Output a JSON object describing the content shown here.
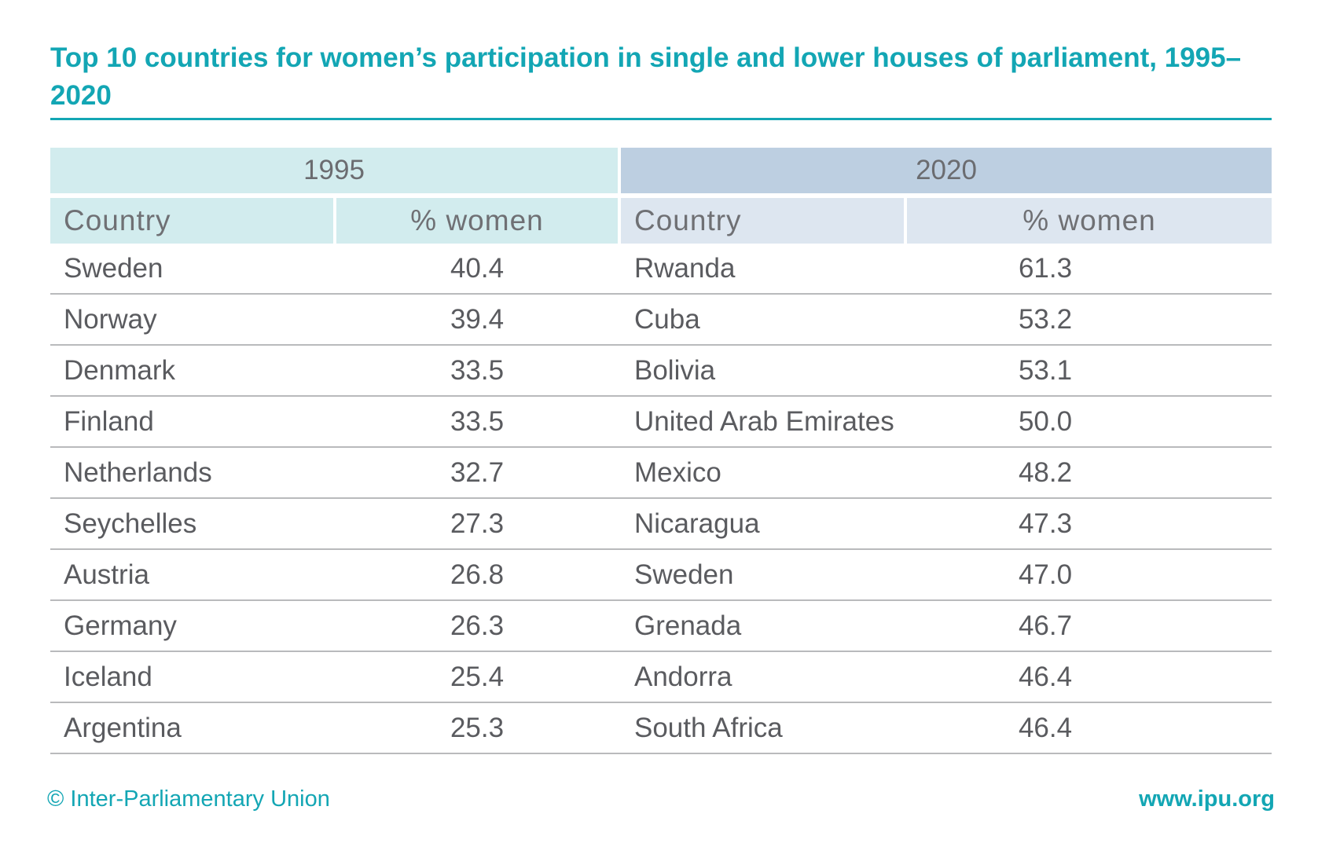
{
  "title": "Top 10 countries for women’s participation in single and lower houses of parliament, 1995–2020",
  "footer": {
    "copyright": "© Inter-Parliamentary Union",
    "website": "www.ipu.org"
  },
  "colors": {
    "accent": "#13a6b4",
    "header_1995": "#d2ecee",
    "header_2020": "#bdcfe1",
    "subheader_2020": "#dde6f0",
    "row_rule": "#b9babc"
  },
  "chart_data": {
    "type": "table",
    "title": "Top 10 countries for women’s participation in single and lower houses of parliament, 1995–2020",
    "groups": [
      {
        "year": "1995",
        "columns": [
          "Country",
          "% women"
        ],
        "rows": [
          [
            "Sweden",
            "40.4"
          ],
          [
            "Norway",
            "39.4"
          ],
          [
            "Denmark",
            "33.5"
          ],
          [
            "Finland",
            "33.5"
          ],
          [
            "Netherlands",
            "32.7"
          ],
          [
            "Seychelles",
            "27.3"
          ],
          [
            "Austria",
            "26.8"
          ],
          [
            "Germany",
            "26.3"
          ],
          [
            "Iceland",
            "25.4"
          ],
          [
            "Argentina",
            "25.3"
          ]
        ]
      },
      {
        "year": "2020",
        "columns": [
          "Country",
          "% women"
        ],
        "rows": [
          [
            "Rwanda",
            "61.3"
          ],
          [
            "Cuba",
            "53.2"
          ],
          [
            "Bolivia",
            "53.1"
          ],
          [
            "United Arab Emirates",
            "50.0"
          ],
          [
            "Mexico",
            "48.2"
          ],
          [
            "Nicaragua",
            "47.3"
          ],
          [
            "Sweden",
            "47.0"
          ],
          [
            "Grenada",
            "46.7"
          ],
          [
            "Andorra",
            "46.4"
          ],
          [
            "South Africa",
            "46.4"
          ]
        ]
      }
    ]
  }
}
